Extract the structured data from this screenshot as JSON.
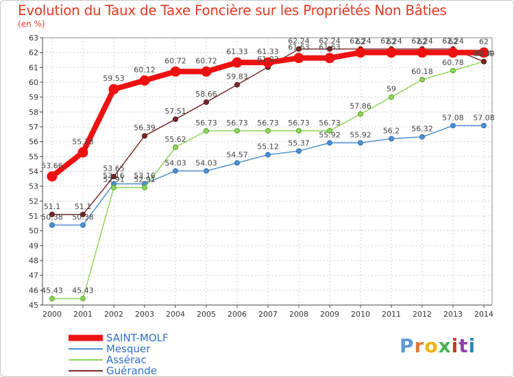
{
  "title": "Evolution du Taux de Taxe Foncière sur les Propriétés Non Bâties",
  "unit": "(en %)",
  "logo": "Proxiti",
  "chart_data": {
    "type": "line",
    "title": "Evolution du Taux de Taxe Foncière sur les Propriétés Non Bâties",
    "ylabel": "(en %)",
    "xlabel": "",
    "ylim": [
      45,
      63
    ],
    "grid": true,
    "x": [
      "2000",
      "2001",
      "2002",
      "2003",
      "2004",
      "2005",
      "2006",
      "2007",
      "2008",
      "2009",
      "2010",
      "2011",
      "2012",
      "2013",
      "2014"
    ],
    "yticks": [
      "45",
      "46",
      "47",
      "48",
      "49",
      "50",
      "51",
      "52",
      "53",
      "54",
      "55",
      "56",
      "57",
      "58",
      "59",
      "60",
      "61",
      "62",
      "63"
    ],
    "series": [
      {
        "name": "SAINT-MOLF",
        "color": "#ee1111",
        "values": [
          53.66,
          55.28,
          59.53,
          60.12,
          60.72,
          60.72,
          61.33,
          61.33,
          61.63,
          61.63,
          62,
          62,
          62,
          62,
          62
        ],
        "labels": [
          "53.66",
          "55.28",
          "59.53",
          "60.12",
          "60.72",
          "60.72",
          "61.33",
          "61.33",
          "61.63",
          "61.63",
          "62",
          "62",
          "62",
          "62",
          "62"
        ]
      },
      {
        "name": "Mesquer",
        "color": "#4f8fd0",
        "values": [
          50.38,
          50.38,
          53.16,
          53.16,
          54.03,
          54.03,
          54.57,
          55.12,
          55.37,
          55.92,
          55.92,
          56.2,
          56.32,
          57.08,
          57.08
        ],
        "labels": [
          "50.38",
          "50.38",
          "53.16",
          "53.16",
          "54.03",
          "54.03",
          "54.57",
          "55.12",
          "55.37",
          "55.92",
          "55.92",
          "56.2",
          "56.32",
          "57.08",
          "57.08"
        ]
      },
      {
        "name": "Assérac",
        "color": "#8fd45a",
        "values": [
          45.43,
          45.43,
          52.91,
          52.91,
          55.62,
          56.73,
          56.73,
          56.73,
          56.73,
          56.73,
          57.86,
          59,
          60.18,
          60.78,
          61.4
        ],
        "labels": [
          "45.43",
          "45.43",
          "52.91",
          "52.91",
          "55.62",
          "56.73",
          "56.73",
          "56.73",
          "56.73",
          "56.73",
          "57.86",
          "59",
          "60.18",
          "60.78",
          "61.4"
        ]
      },
      {
        "name": "Guérande",
        "color": "#7a2a2a",
        "values": [
          51.1,
          51.1,
          53.65,
          56.39,
          57.51,
          58.66,
          59.83,
          61.02,
          62.24,
          62.24,
          62.24,
          62.24,
          62.24,
          62.24,
          61.39
        ],
        "labels": [
          "51.1",
          "51.1",
          "53.65",
          "56.39",
          "57.51",
          "58.66",
          "59.83",
          "61.02",
          "62.24",
          "62.24",
          "62.24",
          "62.24",
          "62.24",
          "62.24",
          "61.39"
        ]
      }
    ],
    "legend": "bottom-left"
  }
}
